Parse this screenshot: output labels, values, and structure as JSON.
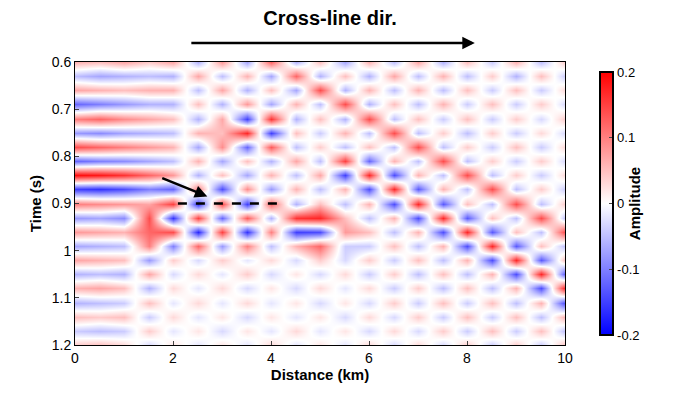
{
  "chart_data": {
    "type": "heatmap",
    "title": "Cross-line dir.",
    "x_label": "Distance (km)",
    "y_label": "Time (s)",
    "x": [
      0,
      0.5,
      1,
      1.5,
      2,
      2.5,
      3,
      3.5,
      4,
      4.5,
      5,
      5.5,
      6,
      6.5,
      7,
      7.5,
      8,
      8.5,
      9,
      9.5,
      10
    ],
    "y": [
      0.6,
      0.63,
      0.66,
      0.69,
      0.72,
      0.75,
      0.78,
      0.81,
      0.84,
      0.87,
      0.9,
      0.93,
      0.96,
      0.99,
      1.02,
      1.05,
      1.08,
      1.11,
      1.14,
      1.17,
      1.2
    ],
    "cells": [
      [
        0.06,
        0.05,
        0.07,
        0.04,
        0.07,
        -0.06,
        0.08,
        -0.07,
        0.12,
        -0.06,
        0.05,
        -0.07,
        0.06,
        -0.05,
        0.07,
        -0.06,
        0.05,
        -0.04,
        0.06,
        -0.05,
        0.04
      ],
      [
        -0.05,
        -0.07,
        -0.06,
        -0.05,
        -0.06,
        0.07,
        -0.05,
        0.06,
        -0.07,
        0.12,
        -0.06,
        0.05,
        -0.06,
        0.07,
        -0.05,
        0.06,
        -0.05,
        0.04,
        -0.06,
        0.05,
        -0.04
      ],
      [
        0.07,
        0.06,
        0.05,
        0.06,
        0.06,
        -0.05,
        0.07,
        -0.06,
        0.05,
        -0.07,
        0.14,
        -0.06,
        0.06,
        -0.05,
        0.06,
        -0.05,
        0.05,
        -0.04,
        0.05,
        -0.04,
        0.03
      ],
      [
        -0.12,
        -0.1,
        -0.08,
        -0.06,
        -0.06,
        0.05,
        -0.06,
        0.08,
        -0.07,
        0.06,
        -0.05,
        0.14,
        -0.06,
        0.05,
        -0.05,
        0.06,
        -0.04,
        0.05,
        -0.04,
        0.04,
        -0.03
      ],
      [
        0.1,
        0.12,
        0.09,
        0.07,
        0.05,
        -0.06,
        0.07,
        -0.15,
        0.16,
        -0.06,
        0.05,
        -0.06,
        0.14,
        -0.05,
        0.05,
        -0.04,
        0.05,
        -0.04,
        0.04,
        -0.03,
        0.04
      ],
      [
        -0.08,
        -0.09,
        -0.07,
        -0.06,
        -0.05,
        0.06,
        0.05,
        0.17,
        -0.15,
        0.05,
        -0.04,
        0.06,
        -0.05,
        0.14,
        -0.05,
        0.04,
        -0.05,
        0.04,
        -0.04,
        0.03,
        -0.03
      ],
      [
        0.14,
        0.12,
        0.1,
        0.08,
        0.06,
        -0.07,
        0.09,
        -0.12,
        0.13,
        -0.05,
        0.04,
        -0.05,
        0.05,
        -0.05,
        0.14,
        -0.05,
        0.04,
        -0.04,
        0.05,
        -0.04,
        0.03
      ],
      [
        -0.12,
        -0.1,
        -0.09,
        -0.07,
        -0.05,
        0.06,
        -0.07,
        0.05,
        -0.06,
        0.07,
        -0.05,
        0.15,
        -0.12,
        0.06,
        -0.05,
        0.14,
        -0.05,
        0.04,
        -0.04,
        0.04,
        -0.03
      ],
      [
        0.19,
        0.18,
        0.16,
        0.12,
        0.08,
        -0.06,
        0.05,
        -0.07,
        0.06,
        -0.05,
        0.07,
        -0.15,
        0.17,
        -0.14,
        0.06,
        -0.05,
        0.14,
        -0.05,
        0.04,
        -0.04,
        0.03
      ],
      [
        -0.15,
        -0.16,
        -0.14,
        -0.1,
        -0.12,
        0.1,
        -0.14,
        0.09,
        -0.08,
        0.06,
        -0.05,
        0.06,
        -0.14,
        0.17,
        -0.13,
        0.06,
        -0.05,
        0.14,
        -0.05,
        0.04,
        -0.04
      ],
      [
        0.1,
        0.09,
        0.08,
        0.07,
        0.15,
        -0.16,
        0.14,
        -0.15,
        0.12,
        -0.06,
        0.05,
        -0.05,
        0.06,
        -0.14,
        0.17,
        -0.13,
        0.05,
        -0.05,
        0.14,
        -0.05,
        0.04
      ],
      [
        -0.08,
        -0.07,
        -0.09,
        0.14,
        -0.16,
        0.15,
        -0.12,
        0.13,
        -0.06,
        0.16,
        0.17,
        0.05,
        -0.05,
        0.06,
        -0.14,
        0.17,
        -0.13,
        0.05,
        -0.05,
        0.14,
        -0.05
      ],
      [
        0.08,
        0.07,
        0.06,
        0.12,
        0.14,
        -0.17,
        0.15,
        -0.16,
        0.1,
        -0.15,
        -0.14,
        0.08,
        0.05,
        -0.05,
        0.06,
        -0.14,
        0.17,
        -0.13,
        0.05,
        -0.05,
        0.14
      ],
      [
        -0.07,
        -0.06,
        -0.05,
        0.1,
        -0.1,
        0.12,
        -0.08,
        0.1,
        -0.05,
        0.06,
        0.12,
        -0.04,
        -0.04,
        0.05,
        -0.05,
        0.06,
        -0.14,
        0.17,
        -0.13,
        0.05,
        -0.05
      ],
      [
        0.07,
        0.06,
        0.05,
        -0.08,
        0.04,
        -0.03,
        0.04,
        -0.02,
        0.03,
        -0.03,
        0.04,
        -0.03,
        0.04,
        -0.04,
        0.05,
        -0.05,
        0.06,
        -0.14,
        0.17,
        -0.13,
        0.05
      ],
      [
        -0.06,
        -0.05,
        -0.06,
        0.07,
        -0.03,
        0.03,
        -0.02,
        0.04,
        -0.03,
        0.02,
        -0.03,
        0.03,
        -0.04,
        0.04,
        -0.05,
        0.05,
        -0.05,
        0.06,
        -0.14,
        0.17,
        -0.13
      ],
      [
        0.06,
        0.07,
        0.05,
        -0.06,
        0.03,
        -0.02,
        0.03,
        -0.03,
        0.02,
        -0.03,
        0.03,
        -0.02,
        0.03,
        -0.04,
        0.04,
        -0.05,
        0.05,
        -0.05,
        0.06,
        -0.14,
        0.17
      ],
      [
        -0.06,
        -0.05,
        -0.04,
        0.05,
        -0.02,
        0.03,
        -0.02,
        0.03,
        -0.02,
        0.02,
        -0.03,
        0.02,
        -0.03,
        0.04,
        -0.04,
        0.05,
        -0.04,
        0.05,
        -0.05,
        0.06,
        -0.14
      ],
      [
        0.05,
        0.04,
        0.05,
        -0.04,
        0.03,
        -0.02,
        0.02,
        -0.03,
        0.02,
        -0.02,
        0.02,
        -0.03,
        0.03,
        -0.03,
        0.04,
        -0.04,
        0.05,
        -0.04,
        0.05,
        -0.05,
        0.06
      ],
      [
        -0.04,
        -0.05,
        -0.04,
        0.04,
        -0.02,
        0.02,
        -0.03,
        0.02,
        -0.02,
        0.03,
        -0.02,
        0.02,
        -0.03,
        0.03,
        -0.03,
        0.04,
        -0.04,
        0.05,
        -0.04,
        0.05,
        -0.05
      ],
      [
        0.04,
        0.05,
        0.03,
        -0.03,
        0.02,
        -0.02,
        0.02,
        -0.02,
        0.03,
        -0.02,
        0.02,
        -0.02,
        0.03,
        -0.03,
        0.03,
        -0.03,
        0.04,
        -0.04,
        0.04,
        -0.04,
        0.05
      ]
    ],
    "xlim": [
      0,
      10
    ],
    "xticks": [
      0,
      2,
      4,
      6,
      8,
      10
    ],
    "ylim": [
      1.2,
      0.6
    ],
    "yticks": [
      0.6,
      0.7,
      0.8,
      0.9,
      1,
      1.1,
      1.2
    ],
    "colorbar": {
      "title": "Amplitude",
      "range": [
        -0.2,
        0.2
      ],
      "ticks": [
        -0.2,
        -0.1,
        0,
        0.1,
        0.2
      ]
    },
    "dashed_line": {
      "x": [
        2.1,
        4.3
      ],
      "y": [
        0.9,
        0.9
      ]
    },
    "arrow": {
      "x": [
        1.75,
        2.7
      ],
      "y": [
        0.845,
        0.885
      ]
    }
  }
}
